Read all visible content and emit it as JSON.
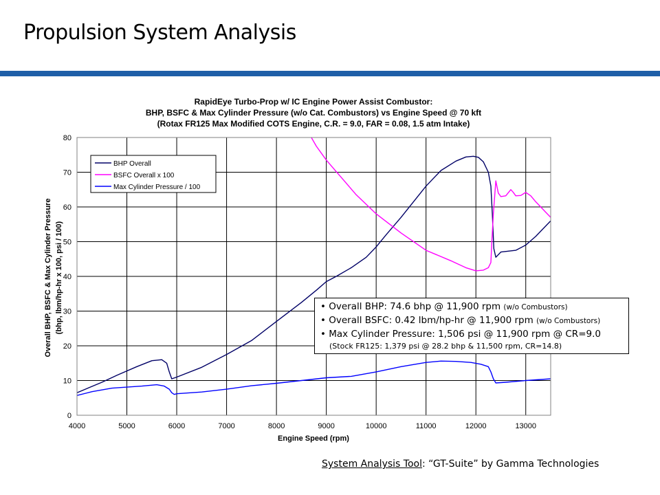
{
  "slide": {
    "title": "Propulsion System Analysis",
    "footer_tool": "System Analysis Tool",
    "footer_rest": ": “GT-Suite” by Gamma Technologies"
  },
  "colors": {
    "rule": "#1f5fa8",
    "bhp": "#000066",
    "bsfc": "#ff00ff",
    "pressure": "#0000ff"
  },
  "chart_data": {
    "type": "line",
    "title_lines": [
      "RapidEye Turbo-Prop w/ IC Engine Power Assist Combustor:",
      "BHP, BSFC & Max Cylinder Pressure (w/o Cat. Combustors) vs Engine Speed @ 70 kft",
      "(Rotax FR125 Max Modified COTS Engine, C.R. = 9.0, FAR = 0.08, 1.5 atm Intake)"
    ],
    "xlabel": "Engine Speed (rpm)",
    "ylabel_lines": [
      "Overall BHP, BSFC & Max Cylinder Pressure",
      "(bhp, lbm/hp-hr x 100, psi / 100)"
    ],
    "xlim": [
      4000,
      13500
    ],
    "ylim": [
      0,
      80
    ],
    "xticks": [
      4000,
      5000,
      6000,
      7000,
      8000,
      9000,
      10000,
      11000,
      12000,
      13000
    ],
    "yticks": [
      0,
      10,
      20,
      30,
      40,
      50,
      60,
      70,
      80
    ],
    "grid": true,
    "legend_position": "top-left",
    "series": [
      {
        "name": "BHP Overall",
        "x": [
          4000,
          4500,
          4800,
          5200,
          5500,
          5700,
          5800,
          5850,
          5900,
          6000,
          6500,
          7000,
          7500,
          8000,
          8500,
          8800,
          9000,
          9200,
          9500,
          9800,
          10000,
          10200,
          10500,
          11000,
          11300,
          11600,
          11800,
          11950,
          12050,
          12150,
          12250,
          12300,
          12330,
          12360,
          12400,
          12500,
          12800,
          13000,
          13200,
          13500
        ],
        "y": [
          6.5,
          9.5,
          11.5,
          14,
          15.7,
          16,
          15,
          12.5,
          10.5,
          11,
          13.8,
          17.5,
          21.5,
          27,
          32.5,
          36,
          38.5,
          40,
          42.5,
          45.5,
          48.5,
          52,
          57,
          66,
          70.5,
          73.2,
          74.4,
          74.6,
          74.3,
          73,
          70,
          66,
          58,
          48,
          45.5,
          47,
          47.5,
          49,
          51.5,
          56
        ]
      },
      {
        "name": "BSFC Overall x 100",
        "x": [
          8700,
          8800,
          9000,
          9300,
          9600,
          10000,
          10500,
          11000,
          11500,
          11800,
          12000,
          12150,
          12250,
          12300,
          12320,
          12350,
          12400,
          12450,
          12500,
          12600,
          12700,
          12750,
          12800,
          12900,
          13000,
          13100,
          13200,
          13300,
          13400,
          13500
        ],
        "y": [
          80,
          77.5,
          73.5,
          68.5,
          63.5,
          58,
          52.5,
          47.5,
          44.5,
          42.5,
          41.6,
          41.8,
          42.5,
          44,
          50,
          58,
          67.5,
          64,
          63,
          63.2,
          65,
          64.2,
          63.2,
          63.3,
          64.2,
          63.2,
          61.5,
          60,
          58.5,
          57
        ]
      },
      {
        "name": "Max Cylinder Pressure / 100",
        "x": [
          4000,
          4300,
          4700,
          5000,
          5300,
          5600,
          5750,
          5850,
          5900,
          5950,
          6000,
          6500,
          7000,
          7500,
          8000,
          8500,
          9000,
          9500,
          10000,
          10500,
          11000,
          11300,
          11600,
          11900,
          12100,
          12250,
          12300,
          12350,
          12400,
          12600,
          13000,
          13500
        ],
        "y": [
          5.7,
          6.8,
          7.8,
          8.1,
          8.4,
          8.8,
          8.4,
          7.5,
          6.5,
          6,
          6.2,
          6.7,
          7.5,
          8.5,
          9.2,
          10,
          10.8,
          11.2,
          12.5,
          14,
          15.2,
          15.6,
          15.5,
          15.2,
          14.7,
          14,
          12.5,
          10.5,
          9.3,
          9.5,
          10,
          10.5
        ]
      }
    ]
  },
  "info_box": {
    "line1_main": "• Overall BHP: 74.6 bhp @ 11,900 rpm ",
    "line1_small": "(w/o Combustors)",
    "line2_main": "• Overall BSFC: 0.42 lbm/hp-hr @ 11,900 rpm ",
    "line2_small": "(w/o Combustors)",
    "line3_main": "• Max Cylinder Pressure: 1,506 psi @ 11,900 rpm @ CR=9.0",
    "line4": "(Stock FR125: 1,379 psi @ 28.2 bhp & 11,500 rpm, CR=14.8)"
  }
}
